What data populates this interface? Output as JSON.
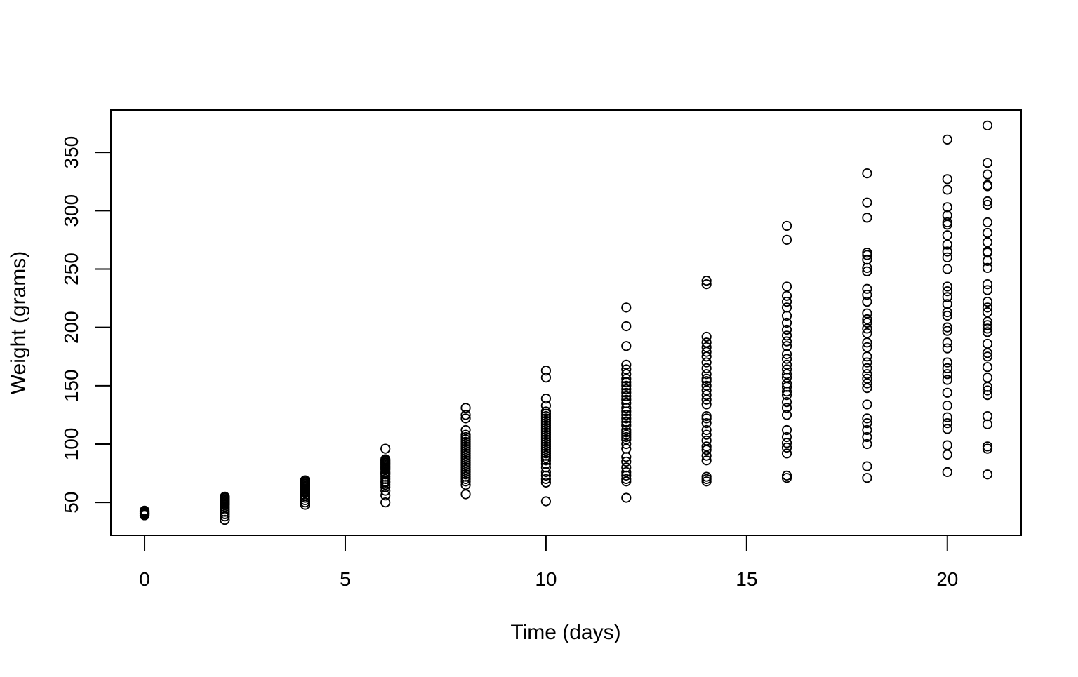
{
  "chart_data": {
    "type": "scatter",
    "title": "",
    "xlabel": "Time (days)",
    "ylabel": "Weight (grams)",
    "xlim": [
      -0.84,
      21.84
    ],
    "ylim": [
      21.84,
      386.16
    ],
    "x_ticks": [
      0,
      5,
      10,
      15,
      20
    ],
    "x_tick_labels": [
      "0",
      "5",
      "10",
      "15",
      "20"
    ],
    "y_ticks": [
      50,
      100,
      150,
      200,
      250,
      300,
      350
    ],
    "y_tick_labels": [
      "50",
      "100",
      "150",
      "200",
      "250",
      "300",
      "350"
    ],
    "grid": false,
    "legend": "none",
    "marker": "open-circle",
    "colors": {
      "marker": "#000000",
      "frame": "#000000",
      "background": "#ffffff"
    },
    "groups": [
      {
        "x": 0,
        "y": [
          39,
          40,
          41,
          42,
          43,
          41,
          40,
          42,
          39,
          41
        ]
      },
      {
        "x": 2,
        "y": [
          35,
          38,
          40,
          42,
          44,
          46,
          48,
          49,
          50,
          51,
          52,
          53,
          54,
          55
        ]
      },
      {
        "x": 4,
        "y": [
          48,
          50,
          52,
          54,
          56,
          58,
          59,
          60,
          61,
          62,
          63,
          64,
          65,
          66,
          67,
          68,
          69
        ]
      },
      {
        "x": 6,
        "y": [
          50,
          56,
          60,
          63,
          65,
          67,
          68,
          70,
          72,
          74,
          75,
          76,
          78,
          79,
          80,
          81,
          82,
          83,
          84,
          85,
          86,
          87,
          96
        ]
      },
      {
        "x": 8,
        "y": [
          57,
          65,
          68,
          70,
          72,
          74,
          76,
          78,
          80,
          82,
          84,
          86,
          88,
          90,
          92,
          94,
          96,
          98,
          100,
          102,
          104,
          106,
          108,
          112,
          122,
          125,
          131
        ]
      },
      {
        "x": 10,
        "y": [
          51,
          67,
          70,
          73,
          76,
          80,
          83,
          86,
          88,
          90,
          92,
          94,
          96,
          98,
          100,
          102,
          104,
          106,
          108,
          110,
          112,
          114,
          116,
          118,
          120,
          122,
          124,
          126,
          128,
          133,
          139,
          157,
          163
        ]
      },
      {
        "x": 12,
        "y": [
          54,
          68,
          70,
          73,
          76,
          80,
          85,
          89,
          96,
          100,
          104,
          106,
          108,
          110,
          112,
          116,
          119,
          122,
          125,
          128,
          131,
          135,
          138,
          141,
          144,
          147,
          150,
          153,
          156,
          160,
          164,
          168,
          184,
          201,
          217
        ]
      },
      {
        "x": 14,
        "y": [
          68,
          70,
          72,
          86,
          90,
          95,
          98,
          103,
          108,
          112,
          118,
          122,
          124,
          134,
          138,
          142,
          146,
          150,
          154,
          156,
          160,
          165,
          170,
          175,
          179,
          183,
          187,
          192,
          237,
          240
        ]
      },
      {
        "x": 16,
        "y": [
          71,
          73,
          92,
          97,
          101,
          106,
          112,
          125,
          131,
          136,
          142,
          145,
          149,
          152,
          157,
          160,
          164,
          168,
          173,
          177,
          184,
          188,
          193,
          198,
          204,
          210,
          217,
          222,
          227,
          235,
          275,
          287
        ]
      },
      {
        "x": 18,
        "y": [
          71,
          81,
          100,
          106,
          112,
          118,
          122,
          134,
          148,
          152,
          156,
          160,
          165,
          170,
          175,
          183,
          187,
          195,
          199,
          204,
          207,
          212,
          222,
          228,
          233,
          248,
          251,
          258,
          262,
          264,
          294,
          307,
          332
        ]
      },
      {
        "x": 20,
        "y": [
          76,
          91,
          99,
          113,
          118,
          123,
          133,
          144,
          155,
          160,
          165,
          170,
          182,
          187,
          197,
          200,
          210,
          213,
          220,
          226,
          231,
          235,
          250,
          260,
          265,
          271,
          279,
          288,
          290,
          296,
          303,
          318,
          327,
          361
        ]
      },
      {
        "x": 21,
        "y": [
          74,
          96,
          98,
          117,
          124,
          142,
          146,
          149,
          157,
          166,
          175,
          178,
          186,
          196,
          199,
          202,
          205,
          213,
          217,
          222,
          232,
          237,
          251,
          257,
          264,
          265,
          273,
          281,
          290,
          305,
          308,
          321,
          322,
          331,
          341,
          373
        ]
      }
    ]
  }
}
